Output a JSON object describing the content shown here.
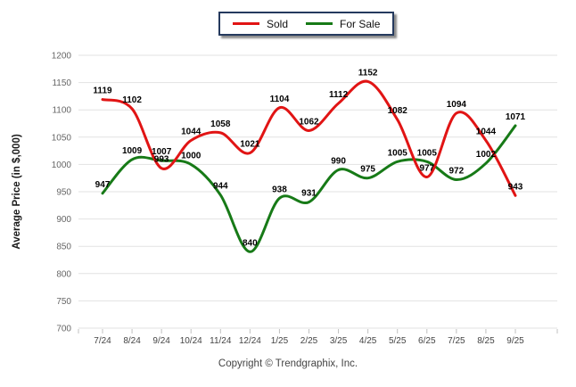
{
  "footer": {
    "copyright": "Copyright © Trendgraphix, Inc."
  },
  "chart_data": {
    "type": "line",
    "title": "",
    "xlabel": "",
    "ylabel": "Average Price (in $,000)",
    "ylim": [
      700,
      1200
    ],
    "ytick_step": 50,
    "grid": true,
    "legend_position": "top-center",
    "categories": [
      "7/24",
      "8/24",
      "9/24",
      "10/24",
      "11/24",
      "12/24",
      "1/25",
      "2/25",
      "3/25",
      "4/25",
      "5/25",
      "6/25",
      "7/25",
      "8/25",
      "9/25"
    ],
    "series": [
      {
        "name": "For Sale",
        "color": "#177a17",
        "values": [
          947,
          1009,
          1007,
          1000,
          944,
          840,
          938,
          931,
          990,
          975,
          1005,
          1005,
          972,
          1002,
          1071
        ]
      },
      {
        "name": "Sold",
        "color": "#e11414",
        "values": [
          1119,
          1102,
          993,
          1044,
          1058,
          1021,
          1104,
          1062,
          1112,
          1152,
          1082,
          977,
          1094,
          1044,
          943
        ]
      }
    ],
    "colors": {
      "grid": "#e2e2e2",
      "tick": "#c0c0c0",
      "y_tick_label": "#666666",
      "x_tick_label": "#444444",
      "data_label": "#000000"
    }
  }
}
